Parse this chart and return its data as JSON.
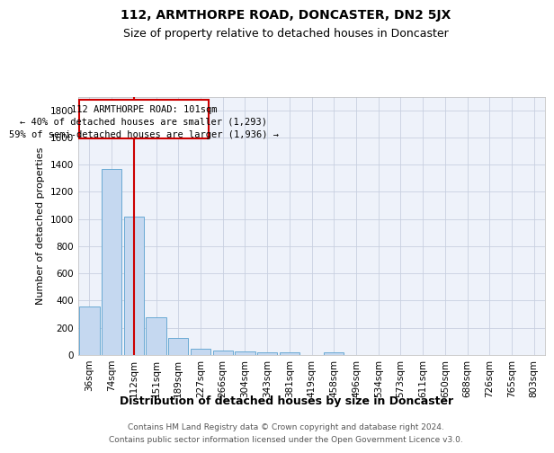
{
  "title": "112, ARMTHORPE ROAD, DONCASTER, DN2 5JX",
  "subtitle": "Size of property relative to detached houses in Doncaster",
  "xlabel": "Distribution of detached houses by size in Doncaster",
  "ylabel": "Number of detached properties",
  "footer_line1": "Contains HM Land Registry data © Crown copyright and database right 2024.",
  "footer_line2": "Contains public sector information licensed under the Open Government Licence v3.0.",
  "annotation_line1": "112 ARMTHORPE ROAD: 101sqm",
  "annotation_line2": "← 40% of detached houses are smaller (1,293)",
  "annotation_line3": "59% of semi-detached houses are larger (1,936) →",
  "bar_values": [
    360,
    1370,
    1020,
    280,
    125,
    45,
    35,
    25,
    20,
    20,
    0,
    20,
    0,
    0,
    0,
    0,
    0,
    0,
    0,
    0,
    0
  ],
  "x_labels": [
    "36sqm",
    "74sqm",
    "112sqm",
    "151sqm",
    "189sqm",
    "227sqm",
    "266sqm",
    "304sqm",
    "343sqm",
    "381sqm",
    "419sqm",
    "458sqm",
    "496sqm",
    "534sqm",
    "573sqm",
    "611sqm",
    "650sqm",
    "688sqm",
    "726sqm",
    "765sqm",
    "803sqm"
  ],
  "bar_color": "#c5d8f0",
  "bar_edgecolor": "#6aaad4",
  "redline_index": 2,
  "ylim": [
    0,
    1900
  ],
  "yticks": [
    0,
    200,
    400,
    600,
    800,
    1000,
    1200,
    1400,
    1600,
    1800
  ],
  "grid_color": "#c8d0e0",
  "bg_color": "#eef2fa",
  "annotation_box_facecolor": "#ffffff",
  "annotation_box_edgecolor": "#cc0000",
  "redline_color": "#cc0000",
  "title_fontsize": 10,
  "subtitle_fontsize": 9,
  "ylabel_fontsize": 8,
  "xlabel_fontsize": 9,
  "tick_fontsize": 7.5,
  "annotation_fontsize": 7.5,
  "footer_fontsize": 6.5
}
